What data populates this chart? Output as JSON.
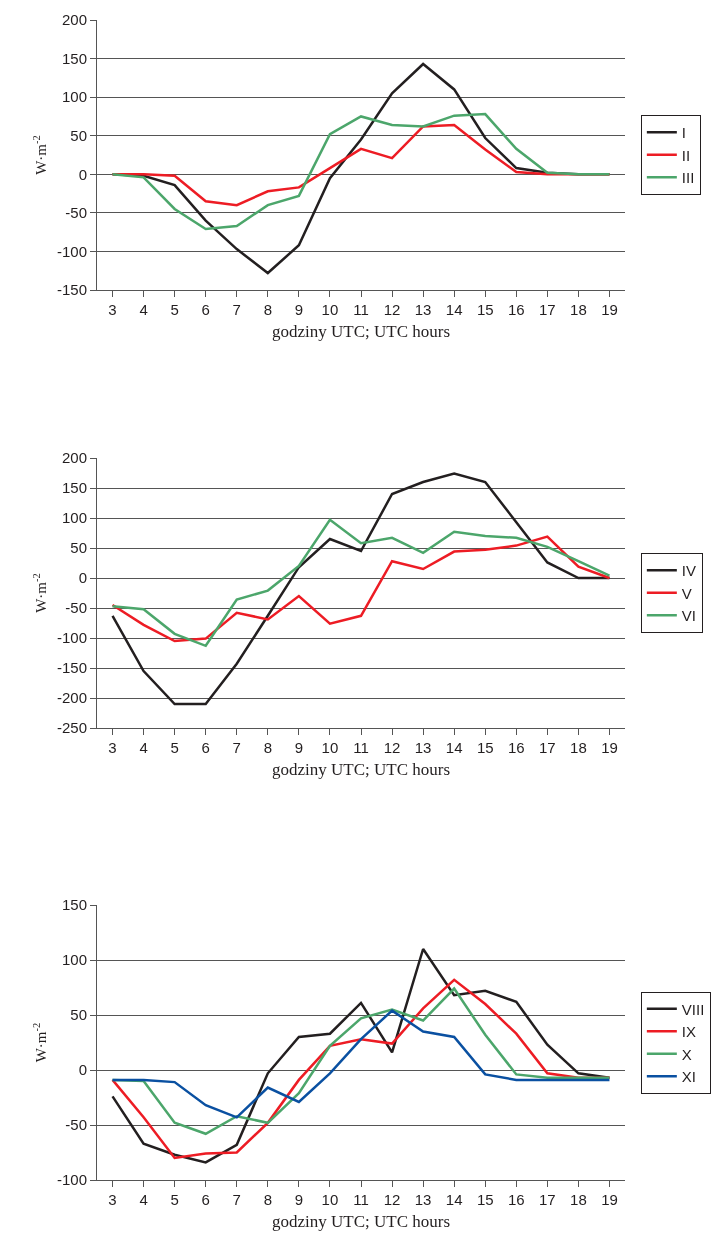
{
  "chart_data": [
    {
      "type": "line",
      "xlabel": "godziny UTC; UTC hours",
      "ylabel": "W·m$^{-2}$",
      "categories": [
        "3",
        "4",
        "5",
        "6",
        "7",
        "8",
        "9",
        "10",
        "11",
        "12",
        "13",
        "14",
        "15",
        "16",
        "17",
        "18",
        "19"
      ],
      "ylim": [
        -150,
        200
      ],
      "yticks": [
        -150,
        -100,
        -50,
        0,
        50,
        100,
        150,
        200
      ],
      "grid": "y",
      "legend": "right",
      "series": [
        {
          "name": "I",
          "color": "#231f20",
          "values": [
            0,
            -2,
            -14,
            -60,
            -97,
            -128,
            -92,
            -5,
            45,
            105,
            143,
            110,
            47,
            8,
            2,
            0,
            0
          ]
        },
        {
          "name": "II",
          "color": "#ed1c24",
          "values": [
            0,
            0,
            -2,
            -35,
            -40,
            -22,
            -17,
            8,
            33,
            21,
            62,
            64,
            32,
            3,
            0,
            0,
            0
          ]
        },
        {
          "name": "III",
          "color": "#4ca66b",
          "values": [
            0,
            -4,
            -45,
            -71,
            -67,
            -40,
            -28,
            52,
            75,
            64,
            62,
            76,
            78,
            33,
            2,
            0,
            0
          ]
        }
      ]
    },
    {
      "type": "line",
      "xlabel": "godziny UTC; UTC hours",
      "ylabel": "W·m$^{-2}$",
      "categories": [
        "3",
        "4",
        "5",
        "6",
        "7",
        "8",
        "9",
        "10",
        "11",
        "12",
        "13",
        "14",
        "15",
        "16",
        "17",
        "18",
        "19"
      ],
      "ylim": [
        -250,
        200
      ],
      "yticks": [
        -250,
        -200,
        -150,
        -100,
        -50,
        0,
        50,
        100,
        150,
        200
      ],
      "grid": "y",
      "legend": "right",
      "series": [
        {
          "name": "IV",
          "color": "#231f20",
          "values": [
            -63,
            -155,
            -210,
            -210,
            -143,
            -63,
            18,
            65,
            45,
            140,
            160,
            174,
            160,
            93,
            26,
            0,
            0
          ]
        },
        {
          "name": "V",
          "color": "#ed1c24",
          "values": [
            -45,
            -78,
            -105,
            -101,
            -58,
            -69,
            -30,
            -76,
            -63,
            28,
            15,
            44,
            47,
            54,
            69,
            19,
            0
          ]
        },
        {
          "name": "VI",
          "color": "#4ca66b",
          "values": [
            -47,
            -52,
            -93,
            -113,
            -36,
            -21,
            20,
            97,
            58,
            67,
            42,
            77,
            70,
            67,
            52,
            28,
            4
          ]
        }
      ]
    },
    {
      "type": "line",
      "xlabel": "godziny UTC; UTC hours",
      "ylabel": "W·m$^{-2}$",
      "categories": [
        "3",
        "4",
        "5",
        "6",
        "7",
        "8",
        "9",
        "10",
        "11",
        "12",
        "13",
        "14",
        "15",
        "16",
        "17",
        "18",
        "19"
      ],
      "ylim": [
        -100,
        150
      ],
      "yticks": [
        -100,
        -50,
        0,
        50,
        100,
        150
      ],
      "grid": "y",
      "legend": "right",
      "series": [
        {
          "name": "VIII",
          "color": "#231f20",
          "values": [
            -24,
            -67,
            -77,
            -84,
            -68,
            -3,
            30,
            33,
            61,
            16,
            110,
            68,
            72,
            62,
            23,
            -3,
            -7
          ]
        },
        {
          "name": "IX",
          "color": "#ed1c24",
          "values": [
            -9,
            -43,
            -80,
            -76,
            -75,
            -48,
            -9,
            22,
            28,
            24,
            56,
            82,
            60,
            33,
            -3,
            -7,
            -7
          ]
        },
        {
          "name": "X",
          "color": "#4ca66b",
          "values": [
            -9,
            -10,
            -48,
            -58,
            -42,
            -48,
            -21,
            22,
            47,
            55,
            45,
            74,
            32,
            -4,
            -7,
            -7,
            -7
          ]
        },
        {
          "name": "XI",
          "color": "#0a50a1",
          "values": [
            -9,
            -9,
            -11,
            -32,
            -43,
            -16,
            -29,
            -3,
            28,
            54,
            35,
            30,
            -4,
            -9,
            -9,
            -9,
            -9
          ]
        }
      ]
    }
  ]
}
